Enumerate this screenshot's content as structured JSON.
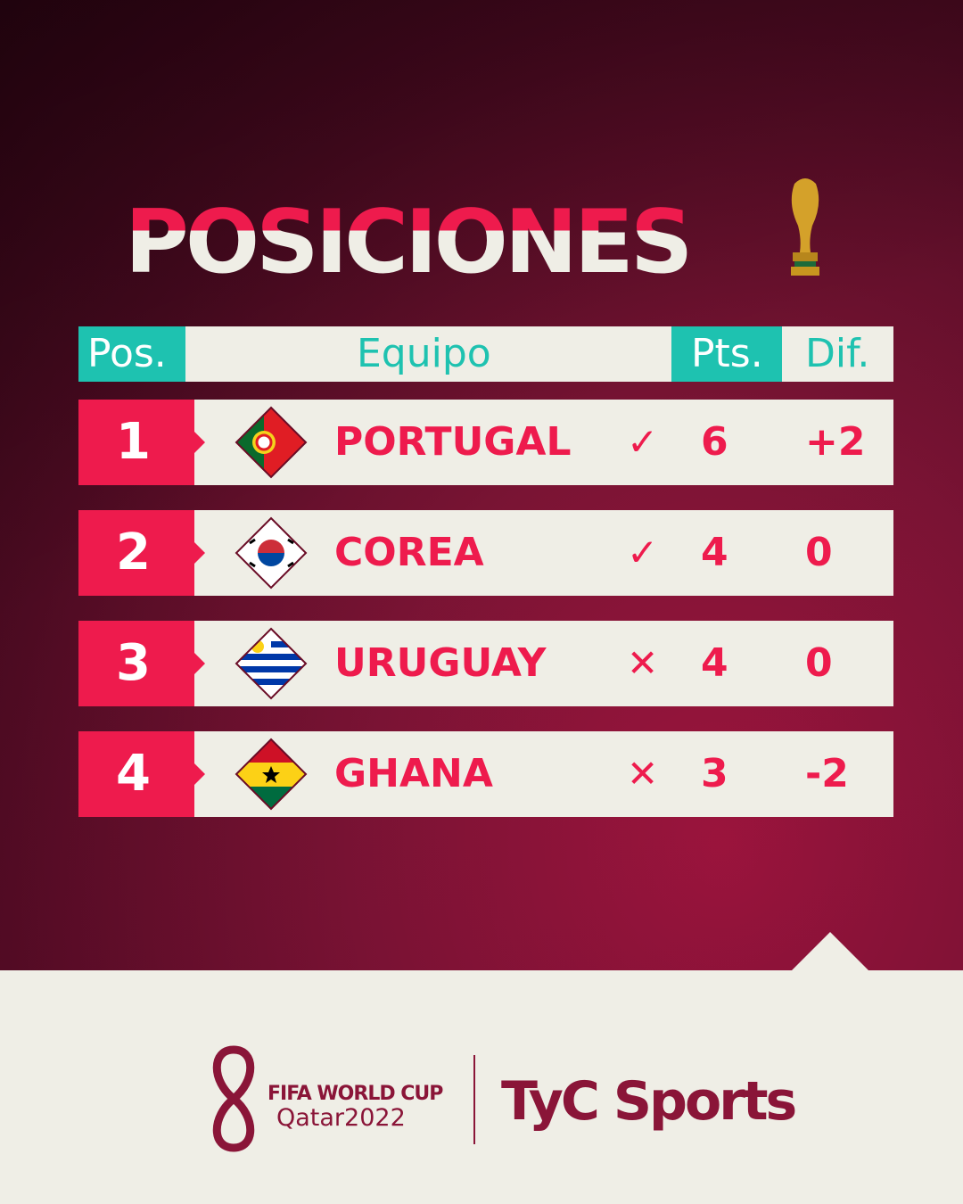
{
  "title": "POSICIONES",
  "header": {
    "pos": "Pos.",
    "team": "Equipo",
    "pts": "Pts.",
    "dif": "Dif."
  },
  "rows": [
    {
      "pos": "1",
      "team": "PORTUGAL",
      "status": "✓",
      "status_icon": "check-icon",
      "pts": "6",
      "dif": "+2",
      "flag": "portugal"
    },
    {
      "pos": "2",
      "team": "COREA",
      "status": "✓",
      "status_icon": "check-icon",
      "pts": "4",
      "dif": "0",
      "flag": "korea"
    },
    {
      "pos": "3",
      "team": "URUGUAY",
      "status": "✕",
      "status_icon": "cross-icon",
      "pts": "4",
      "dif": "0",
      "flag": "uruguay"
    },
    {
      "pos": "4",
      "team": "GHANA",
      "status": "✕",
      "status_icon": "cross-icon",
      "pts": "3",
      "dif": "-2",
      "flag": "ghana"
    }
  ],
  "footer": {
    "fifa_line1": "FIFA WORLD CUP",
    "fifa_line2": "Qatar2022",
    "broadcaster": "TyC Sports"
  },
  "colors": {
    "accent": "#ee1b4d",
    "teal": "#1ec2b0",
    "maroon": "#8a1538",
    "cream": "#efeee6"
  }
}
